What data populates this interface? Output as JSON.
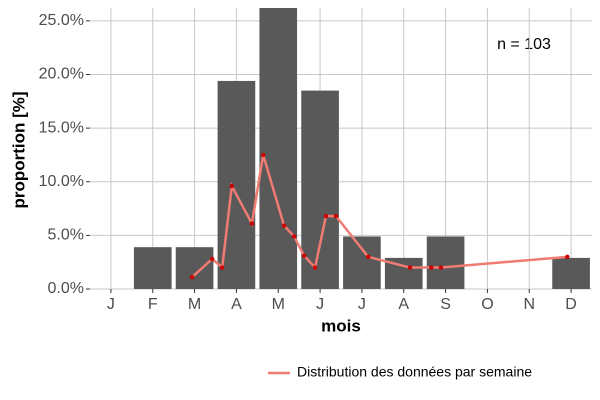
{
  "chart_data": [
    {
      "type": "bar",
      "categories": [
        "J",
        "F",
        "M",
        "A",
        "M",
        "J",
        "J",
        "A",
        "S",
        "O",
        "N",
        "D"
      ],
      "values": [
        0,
        3.9,
        3.9,
        19.4,
        26.2,
        18.5,
        4.9,
        2.9,
        4.9,
        0,
        0,
        2.9
      ],
      "color": "#595959",
      "ylim": [
        0,
        26.2
      ],
      "yticks": [
        {
          "value": 0,
          "label": "0.0%"
        },
        {
          "value": 5,
          "label": "5.0%"
        },
        {
          "value": 10,
          "label": "10.0%"
        },
        {
          "value": 15,
          "label": "15.0%"
        },
        {
          "value": 20,
          "label": "20.0%"
        },
        {
          "value": 25,
          "label": "25.0%"
        }
      ],
      "ylabel": "proportion [%]",
      "xlabel": "mois",
      "annotation": "n = 103",
      "grid": true
    },
    {
      "type": "line",
      "name": "Distribution des données par semaine",
      "color": "#f07b72",
      "point_color": "#cc0000",
      "xlim": [
        0.5,
        12.5
      ],
      "x": [
        2.94,
        3.42,
        3.66,
        3.89,
        4.37,
        4.64,
        5.14,
        5.38,
        5.62,
        5.88,
        6.14,
        6.38,
        7.15,
        8.15,
        8.66,
        8.89,
        11.91
      ],
      "values": [
        1.1,
        2.8,
        2.0,
        9.6,
        6.1,
        12.5,
        5.9,
        4.9,
        3.1,
        2.0,
        6.8,
        6.8,
        3.0,
        2.0,
        2.0,
        2.0,
        3.0
      ],
      "legend": "bottom-right"
    }
  ]
}
